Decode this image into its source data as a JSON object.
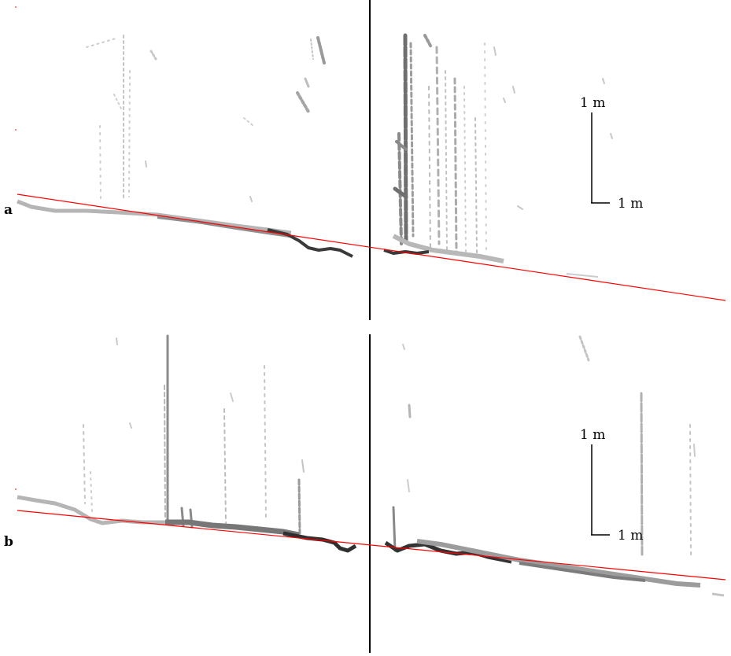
{
  "figure": {
    "panels": [
      {
        "label": "a",
        "scale_bar": {
          "vertical_label": "1 m",
          "horizontal_label": "1 m"
        },
        "colors": {
          "fit_line": "#ff0000",
          "divider": "#000000",
          "points_light": "#bdbdbd",
          "points_mid": "#8a8a8a",
          "points_dark": "#333333"
        }
      },
      {
        "label": "b",
        "scale_bar": {
          "vertical_label": "1 m",
          "horizontal_label": "1 m"
        },
        "colors": {
          "fit_line": "#ff0000",
          "divider": "#000000",
          "points_light": "#bdbdbd",
          "points_mid": "#8a8a8a",
          "points_dark": "#333333"
        }
      }
    ]
  }
}
